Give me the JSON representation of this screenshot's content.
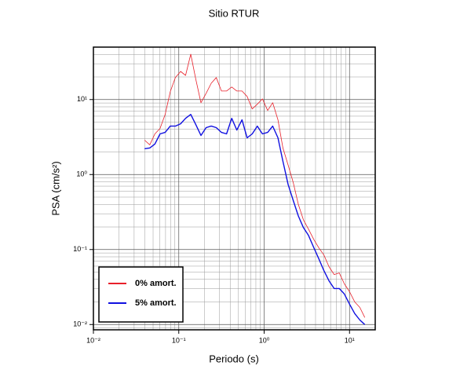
{
  "chart_data": {
    "type": "line",
    "title": "Sitio RTUR",
    "xlabel": "Periodo (s)",
    "ylabel": "PSA (cm/s²)",
    "xscale": "log",
    "yscale": "log",
    "grid": true,
    "minor_grid": true,
    "legend": "lower left",
    "xlim": [
      0.01,
      20
    ],
    "ylim": [
      0.0085,
      50
    ],
    "xticks": [
      {
        "value": 0.01,
        "label": "10⁻²"
      },
      {
        "value": 0.1,
        "label": "10⁻¹"
      },
      {
        "value": 1,
        "label": "10⁰"
      },
      {
        "value": 10,
        "label": "10¹"
      }
    ],
    "yticks": [
      {
        "value": 0.01,
        "label": "10⁻²"
      },
      {
        "value": 0.1,
        "label": "10⁻¹"
      },
      {
        "value": 1,
        "label": "10⁰"
      },
      {
        "value": 10,
        "label": "10¹"
      }
    ],
    "x": [
      0.0398,
      0.0457,
      0.0525,
      0.0603,
      0.0692,
      0.0794,
      0.0912,
      0.105,
      0.12,
      0.138,
      0.158,
      0.182,
      0.209,
      0.24,
      0.275,
      0.316,
      0.363,
      0.417,
      0.479,
      0.55,
      0.631,
      0.724,
      0.832,
      0.955,
      1.1,
      1.26,
      1.45,
      1.66,
      1.91,
      2.19,
      2.51,
      2.88,
      3.31,
      3.8,
      4.37,
      5.01,
      5.75,
      6.61,
      7.59,
      8.71,
      10.0,
      11.5,
      13.2,
      15.1
    ],
    "series": [
      {
        "name": "0% amort.",
        "color": "#e8202a",
        "width": 0.8,
        "values": [
          2.87,
          2.49,
          3.48,
          4.12,
          6.34,
          12.7,
          19.6,
          23.7,
          21.0,
          40.2,
          18.7,
          9.08,
          12.1,
          16.5,
          19.6,
          13.0,
          13.0,
          14.7,
          13.0,
          13.0,
          11.0,
          7.5,
          8.66,
          10.2,
          7.15,
          9.08,
          5.36,
          2.26,
          1.33,
          0.787,
          0.402,
          0.249,
          0.187,
          0.137,
          0.105,
          0.0846,
          0.059,
          0.0464,
          0.0487,
          0.0348,
          0.0274,
          0.02,
          0.0169,
          0.0124
        ]
      },
      {
        "name": "5% amort.",
        "color": "#1010e0",
        "width": 1.4,
        "values": [
          2.21,
          2.26,
          2.55,
          3.48,
          3.65,
          4.42,
          4.42,
          4.75,
          5.62,
          6.34,
          4.64,
          3.32,
          4.22,
          4.42,
          4.22,
          3.65,
          3.48,
          5.62,
          3.92,
          5.36,
          3.09,
          3.48,
          4.42,
          3.48,
          3.65,
          4.42,
          3.09,
          1.5,
          0.732,
          0.453,
          0.281,
          0.196,
          0.154,
          0.107,
          0.075,
          0.0523,
          0.0383,
          0.0302,
          0.0302,
          0.0255,
          0.0187,
          0.014,
          0.0115,
          0.01
        ]
      }
    ]
  }
}
